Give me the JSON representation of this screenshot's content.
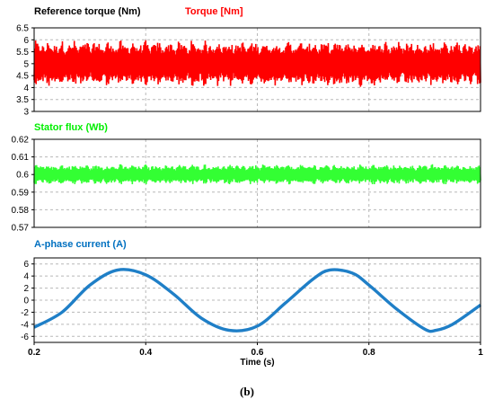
{
  "caption": "(b)",
  "chart_data": [
    {
      "type": "line",
      "labels": [
        {
          "text": "Reference torque (Nm)",
          "color": "#000000"
        },
        {
          "text": "Torque [Nm]",
          "color": "#ff0000"
        }
      ],
      "ylim": [
        3,
        6.5
      ],
      "yticks": [
        3,
        3.5,
        4,
        4.5,
        5,
        5.5,
        6,
        6.5
      ],
      "xlim": [
        0.2,
        1.0
      ],
      "series": [
        {
          "name": "Torque [Nm]",
          "color": "#ff0000",
          "mean": 5.0,
          "band": [
            4.0,
            6.0
          ]
        },
        {
          "name": "Reference torque (Nm)",
          "color": "#000000",
          "constant": 5.0
        }
      ]
    },
    {
      "type": "line",
      "labels": [
        {
          "text": "Stator flux (Wb)",
          "color": "#00ee00"
        }
      ],
      "ylim": [
        0.57,
        0.62
      ],
      "yticks": [
        0.57,
        0.58,
        0.59,
        0.6,
        0.61,
        0.62
      ],
      "xlim": [
        0.2,
        1.0
      ],
      "series": [
        {
          "name": "Stator flux (Wb)",
          "color": "#33ff33",
          "mean": 0.6,
          "band": [
            0.594,
            0.606
          ]
        }
      ]
    },
    {
      "type": "line",
      "labels": [
        {
          "text": "A-phase current (A)",
          "color": "#0070c0"
        }
      ],
      "ylim": [
        -7,
        7
      ],
      "yticks": [
        -6,
        -4,
        -2,
        0,
        2,
        4,
        6
      ],
      "xlim": [
        0.2,
        1.0
      ],
      "xticks": [
        0.2,
        0.4,
        0.6,
        0.8,
        1
      ],
      "xlabel": "Time (s)",
      "series": [
        {
          "name": "A-phase current (A)",
          "color": "#1f7fc7",
          "x": [
            0.2,
            0.25,
            0.3,
            0.35,
            0.4,
            0.45,
            0.5,
            0.55,
            0.6,
            0.65,
            0.7,
            0.73,
            0.77,
            0.8,
            0.85,
            0.9,
            0.92,
            0.95,
            1.0
          ],
          "values": [
            -4.5,
            -2.0,
            2.5,
            5.0,
            4.2,
            1.0,
            -3.0,
            -5.0,
            -4.3,
            -0.5,
            3.5,
            5.0,
            4.5,
            2.5,
            -1.5,
            -4.8,
            -5.0,
            -4.0,
            -0.8
          ]
        }
      ]
    }
  ]
}
